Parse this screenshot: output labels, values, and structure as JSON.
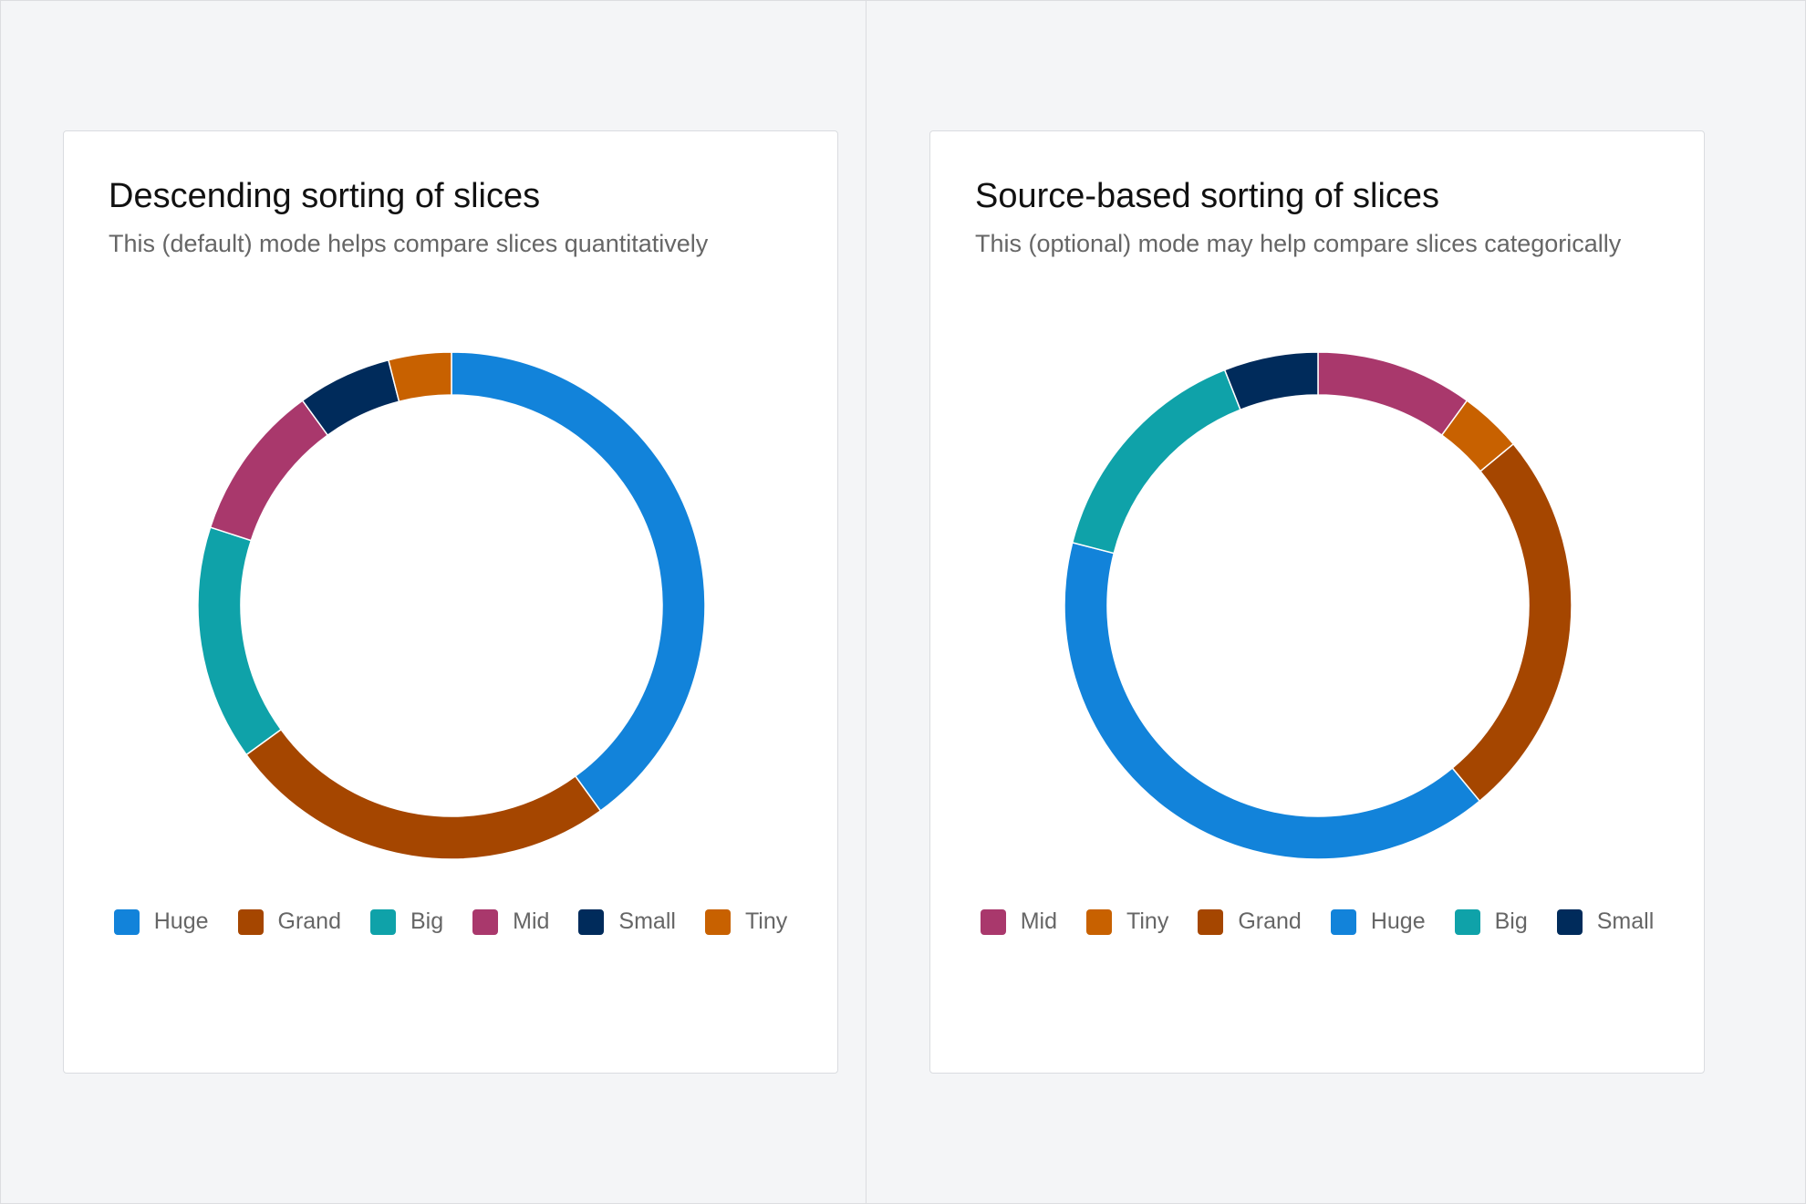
{
  "colors": {
    "Huge": "#1283da",
    "Grand": "#a54600",
    "Big": "#0fa2a9",
    "Mid": "#a9386c",
    "Small": "#002b5b",
    "Tiny": "#c86100"
  },
  "chart_data": [
    {
      "type": "pie",
      "variant": "donut",
      "title": "Descending sorting of slices",
      "subtitle": "This (default) mode helps compare slices quantitatively",
      "categories": [
        "Huge",
        "Grand",
        "Big",
        "Mid",
        "Small",
        "Tiny"
      ],
      "values": [
        40,
        25,
        15,
        10,
        6,
        4
      ],
      "legend": "bottom"
    },
    {
      "type": "pie",
      "variant": "donut",
      "title": "Source-based sorting of slices",
      "subtitle": "This (optional) mode may help compare slices categorically",
      "categories": [
        "Mid",
        "Tiny",
        "Grand",
        "Huge",
        "Big",
        "Small"
      ],
      "values": [
        10,
        4,
        25,
        40,
        15,
        6
      ],
      "legend": "bottom"
    }
  ]
}
